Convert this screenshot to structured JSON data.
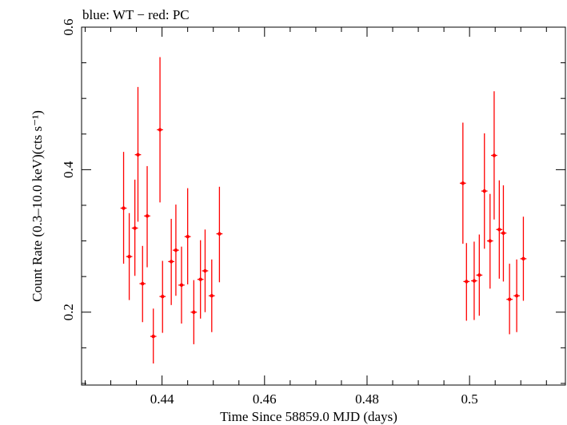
{
  "chart_data": {
    "type": "scatter",
    "title": "blue: WT − red: PC",
    "xlabel": "Time Since 58859.0 MJD (days)",
    "ylabel": "Count Rate (0.3–10.0 keV)(cts s⁻¹)",
    "xlim": [
      0.4243,
      0.5187
    ],
    "ylim": [
      0.0977,
      0.6
    ],
    "x_ticks": [
      "0.44",
      "0.46",
      "0.48",
      "0.5"
    ],
    "y_ticks": [
      "0.2",
      "0.4",
      "0.6"
    ],
    "grid": false,
    "series": [
      {
        "color": "#ff0000",
        "points": [
          {
            "x": 0.4325,
            "y": 0.346,
            "yerr": [
              0.268,
              0.425
            ],
            "xerr": 0.0006
          },
          {
            "x": 0.4336,
            "y": 0.278,
            "yerr": [
              0.217,
              0.339
            ],
            "xerr": 0.0006
          },
          {
            "x": 0.4347,
            "y": 0.318,
            "yerr": [
              0.251,
              0.386
            ],
            "xerr": 0.0006
          },
          {
            "x": 0.4353,
            "y": 0.421,
            "yerr": [
              0.327,
              0.516
            ],
            "xerr": 0.0006
          },
          {
            "x": 0.4362,
            "y": 0.24,
            "yerr": [
              0.186,
              0.293
            ],
            "xerr": 0.0006
          },
          {
            "x": 0.4371,
            "y": 0.335,
            "yerr": [
              0.263,
              0.405
            ],
            "xerr": 0.0006
          },
          {
            "x": 0.4383,
            "y": 0.166,
            "yerr": [
              0.128,
              0.205
            ],
            "xerr": 0.0006
          },
          {
            "x": 0.4396,
            "y": 0.456,
            "yerr": [
              0.354,
              0.558
            ],
            "xerr": 0.0006
          },
          {
            "x": 0.4401,
            "y": 0.222,
            "yerr": [
              0.171,
              0.272
            ],
            "xerr": 0.0006
          },
          {
            "x": 0.4418,
            "y": 0.271,
            "yerr": [
              0.21,
              0.331
            ],
            "xerr": 0.0006
          },
          {
            "x": 0.4427,
            "y": 0.287,
            "yerr": [
              0.223,
              0.351
            ],
            "xerr": 0.0006
          },
          {
            "x": 0.4438,
            "y": 0.238,
            "yerr": [
              0.184,
              0.292
            ],
            "xerr": 0.0006
          },
          {
            "x": 0.445,
            "y": 0.306,
            "yerr": [
              0.239,
              0.374
            ],
            "xerr": 0.0006
          },
          {
            "x": 0.4462,
            "y": 0.2,
            "yerr": [
              0.155,
              0.245
            ],
            "xerr": 0.0006
          },
          {
            "x": 0.4475,
            "y": 0.246,
            "yerr": [
              0.191,
              0.301
            ],
            "xerr": 0.0006
          },
          {
            "x": 0.4484,
            "y": 0.258,
            "yerr": [
              0.2,
              0.316
            ],
            "xerr": 0.0006
          },
          {
            "x": 0.4497,
            "y": 0.223,
            "yerr": [
              0.172,
              0.274
            ],
            "xerr": 0.0006
          },
          {
            "x": 0.4512,
            "y": 0.31,
            "yerr": [
              0.242,
              0.376
            ],
            "xerr": 0.0006
          },
          {
            "x": 0.4987,
            "y": 0.381,
            "yerr": [
              0.296,
              0.466
            ],
            "xerr": 0.0006
          },
          {
            "x": 0.4994,
            "y": 0.243,
            "yerr": [
              0.188,
              0.297
            ],
            "xerr": 0.0006
          },
          {
            "x": 0.5009,
            "y": 0.244,
            "yerr": [
              0.189,
              0.299
            ],
            "xerr": 0.0006
          },
          {
            "x": 0.5019,
            "y": 0.252,
            "yerr": [
              0.195,
              0.309
            ],
            "xerr": 0.0006
          },
          {
            "x": 0.5029,
            "y": 0.37,
            "yerr": [
              0.289,
              0.451
            ],
            "xerr": 0.0006
          },
          {
            "x": 0.504,
            "y": 0.3,
            "yerr": [
              0.233,
              0.366
            ],
            "xerr": 0.0006
          },
          {
            "x": 0.5048,
            "y": 0.42,
            "yerr": [
              0.33,
              0.51
            ],
            "xerr": 0.0006
          },
          {
            "x": 0.5058,
            "y": 0.316,
            "yerr": [
              0.247,
              0.385
            ],
            "xerr": 0.0006
          },
          {
            "x": 0.5066,
            "y": 0.311,
            "yerr": [
              0.243,
              0.378
            ],
            "xerr": 0.0006
          },
          {
            "x": 0.5078,
            "y": 0.218,
            "yerr": [
              0.169,
              0.268
            ],
            "xerr": 0.0006
          },
          {
            "x": 0.5092,
            "y": 0.223,
            "yerr": [
              0.172,
              0.274
            ],
            "xerr": 0.0006
          },
          {
            "x": 0.5105,
            "y": 0.275,
            "yerr": [
              0.216,
              0.334
            ],
            "xerr": 0.0006
          }
        ]
      }
    ]
  }
}
